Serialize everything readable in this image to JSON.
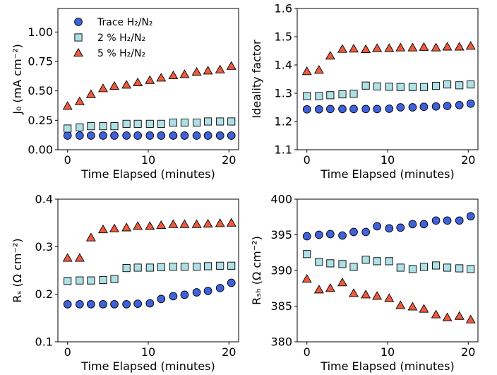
{
  "legend": {
    "placement": "upper-left of first panel",
    "entries": [
      {
        "label": "Trace H₂/N₂",
        "marker": "circle",
        "color": "#3f61d9"
      },
      {
        "label": "2 % H₂/N₂",
        "marker": "square",
        "color": "#aee0e6"
      },
      {
        "label": "5 % H₂/N₂",
        "marker": "triangle",
        "color": "#ee5a3e"
      }
    ]
  },
  "chart_data": [
    {
      "type": "scatter",
      "xlabel": "Time Elapsed (minutes)",
      "ylabel": "J₀ (mA cm⁻²)",
      "xlim": [
        -1.2,
        21.2
      ],
      "ylim": [
        0.0,
        1.2
      ],
      "xticks": [
        0,
        10,
        20
      ],
      "yticks": [
        0.0,
        0.25,
        0.5,
        0.75,
        1.0
      ],
      "ytick_labels": [
        "0.00",
        "0.25",
        "0.50",
        "0.75",
        "1.00"
      ],
      "x": [
        0,
        1.5,
        2.9,
        4.4,
        5.8,
        7.3,
        8.7,
        10.2,
        11.6,
        13.1,
        14.5,
        16.0,
        17.4,
        18.9,
        20.3
      ],
      "series": [
        {
          "name": "Trace H₂/N₂",
          "values": [
            0.12,
            0.12,
            0.12,
            0.12,
            0.12,
            0.12,
            0.12,
            0.12,
            0.12,
            0.12,
            0.12,
            0.12,
            0.12,
            0.12,
            0.12
          ]
        },
        {
          "name": "2 % H₂/N₂",
          "values": [
            0.18,
            0.19,
            0.2,
            0.2,
            0.2,
            0.22,
            0.22,
            0.22,
            0.22,
            0.23,
            0.23,
            0.23,
            0.24,
            0.24,
            0.24
          ]
        },
        {
          "name": "5 % H₂/N₂",
          "values": [
            0.37,
            0.41,
            0.47,
            0.52,
            0.54,
            0.55,
            0.57,
            0.59,
            0.61,
            0.63,
            0.64,
            0.66,
            0.67,
            0.68,
            0.71
          ]
        }
      ]
    },
    {
      "type": "scatter",
      "xlabel": "Time Elapsed (minutes)",
      "ylabel": "Ideality factor",
      "xlim": [
        -1.2,
        21.2
      ],
      "ylim": [
        1.1,
        1.6
      ],
      "xticks": [
        0,
        10,
        20
      ],
      "yticks": [
        1.1,
        1.2,
        1.3,
        1.4,
        1.5,
        1.6
      ],
      "ytick_labels": [
        "1.1",
        "1.2",
        "1.3",
        "1.4",
        "1.5",
        "1.6"
      ],
      "x": [
        0,
        1.5,
        2.9,
        4.4,
        5.8,
        7.3,
        8.7,
        10.2,
        11.6,
        13.1,
        14.5,
        16.0,
        17.4,
        18.9,
        20.3
      ],
      "series": [
        {
          "name": "Trace H₂/N₂",
          "values": [
            1.243,
            1.243,
            1.244,
            1.244,
            1.244,
            1.244,
            1.244,
            1.245,
            1.25,
            1.25,
            1.252,
            1.253,
            1.255,
            1.258,
            1.263
          ]
        },
        {
          "name": "2 % H₂/N₂",
          "values": [
            1.29,
            1.29,
            1.293,
            1.296,
            1.298,
            1.327,
            1.324,
            1.323,
            1.322,
            1.322,
            1.322,
            1.326,
            1.331,
            1.328,
            1.331
          ]
        },
        {
          "name": "5 % H₂/N₂",
          "values": [
            1.377,
            1.382,
            1.432,
            1.456,
            1.457,
            1.455,
            1.459,
            1.459,
            1.461,
            1.461,
            1.463,
            1.461,
            1.464,
            1.464,
            1.467
          ]
        }
      ]
    },
    {
      "type": "scatter",
      "xlabel": "Time Elapsed (minutes)",
      "ylabel": "Rₛ (Ω cm⁻²)",
      "xlim": [
        -1.2,
        21.2
      ],
      "ylim": [
        0.1,
        0.4
      ],
      "xticks": [
        0,
        10,
        20
      ],
      "yticks": [
        0.1,
        0.2,
        0.3,
        0.4
      ],
      "ytick_labels": [
        "0.1",
        "0.2",
        "0.3",
        "0.4"
      ],
      "x": [
        0,
        1.5,
        2.9,
        4.4,
        5.8,
        7.3,
        8.7,
        10.2,
        11.6,
        13.1,
        14.5,
        16.0,
        17.4,
        18.9,
        20.3
      ],
      "series": [
        {
          "name": "Trace H₂/N₂",
          "values": [
            0.179,
            0.179,
            0.179,
            0.179,
            0.179,
            0.179,
            0.18,
            0.181,
            0.19,
            0.196,
            0.199,
            0.204,
            0.207,
            0.213,
            0.224
          ]
        },
        {
          "name": "2 % H₂/N₂",
          "values": [
            0.228,
            0.229,
            0.229,
            0.23,
            0.232,
            0.255,
            0.256,
            0.256,
            0.257,
            0.258,
            0.258,
            0.258,
            0.259,
            0.26,
            0.26
          ]
        },
        {
          "name": "5 % H₂/N₂",
          "values": [
            0.276,
            0.276,
            0.319,
            0.336,
            0.338,
            0.34,
            0.343,
            0.343,
            0.345,
            0.347,
            0.347,
            0.347,
            0.348,
            0.349,
            0.35
          ]
        }
      ]
    },
    {
      "type": "scatter",
      "xlabel": "Time Elapsed (minutes)",
      "ylabel": "Rₛₕ (Ω cm⁻²)",
      "xlim": [
        -1.2,
        21.2
      ],
      "ylim": [
        380,
        400
      ],
      "xticks": [
        0,
        10,
        20
      ],
      "yticks": [
        380,
        385,
        390,
        395,
        400
      ],
      "ytick_labels": [
        "380",
        "385",
        "390",
        "395",
        "400"
      ],
      "x": [
        0,
        1.5,
        2.9,
        4.4,
        5.8,
        7.3,
        8.7,
        10.2,
        11.6,
        13.1,
        14.5,
        16.0,
        17.4,
        18.9,
        20.3
      ],
      "series": [
        {
          "name": "Trace H₂/N₂",
          "values": [
            394.8,
            395.0,
            395.1,
            394.9,
            395.4,
            395.4,
            396.2,
            395.9,
            396.0,
            396.5,
            396.5,
            397.0,
            397.0,
            397.0,
            397.6
          ]
        },
        {
          "name": "2 % H₂/N₂",
          "values": [
            392.3,
            391.2,
            391.0,
            390.9,
            390.5,
            391.5,
            391.3,
            391.3,
            390.4,
            390.2,
            390.5,
            390.7,
            390.4,
            390.3,
            390.2
          ]
        },
        {
          "name": "5 % H₂/N₂",
          "values": [
            388.8,
            387.3,
            387.5,
            388.3,
            386.8,
            386.6,
            386.4,
            386.1,
            385.1,
            384.9,
            384.6,
            383.8,
            383.4,
            383.6,
            383.1
          ]
        }
      ]
    }
  ]
}
